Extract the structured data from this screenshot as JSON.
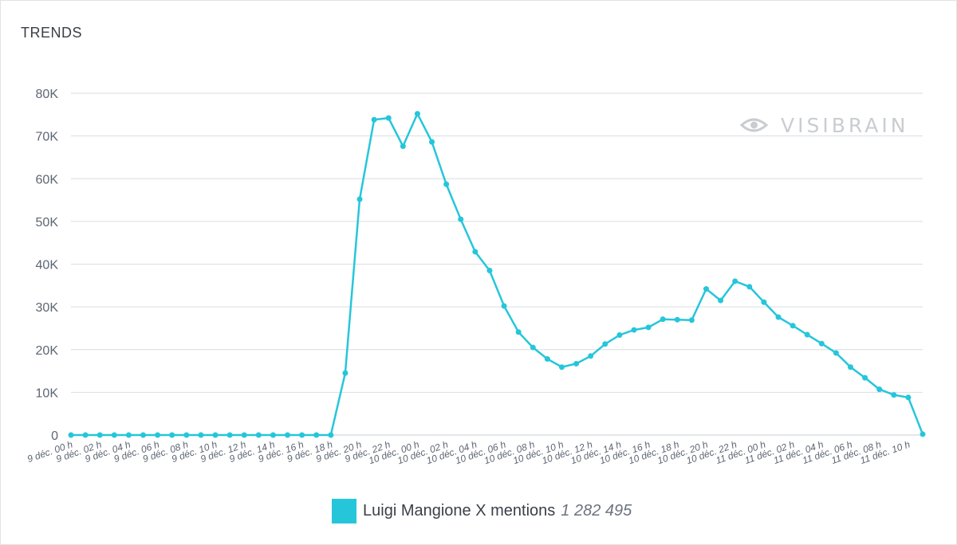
{
  "title": "TRENDS",
  "watermark": "VISIBRAIN",
  "legend": {
    "label": "Luigi Mangione X mentions",
    "total": "1 282 495"
  },
  "colors": {
    "series": "#26c6da",
    "grid": "#d9dde2",
    "axis_text": "#5d6673",
    "watermark": "#c9cdd1"
  },
  "chart_data": {
    "type": "line",
    "title": "TRENDS",
    "xlabel": "",
    "ylabel": "",
    "ylim": [
      0,
      80000
    ],
    "yticks": [
      0,
      10000,
      20000,
      30000,
      40000,
      50000,
      60000,
      70000,
      80000
    ],
    "ytick_labels": [
      "0",
      "10K",
      "20K",
      "30K",
      "40K",
      "50K",
      "60K",
      "70K",
      "80K"
    ],
    "xtick_labels": [
      "9 déc. 00 h",
      "9 déc. 02 h",
      "9 déc. 04 h",
      "9 déc. 06 h",
      "9 déc. 08 h",
      "9 déc. 10 h",
      "9 déc. 12 h",
      "9 déc. 14 h",
      "9 déc. 16 h",
      "9 déc. 18 h",
      "9 déc. 20 h",
      "9 déc. 22 h",
      "10 déc. 00 h",
      "10 déc. 02 h",
      "10 déc. 04 h",
      "10 déc. 06 h",
      "10 déc. 08 h",
      "10 déc. 10 h",
      "10 déc. 12 h",
      "10 déc. 14 h",
      "10 déc. 16 h",
      "10 déc. 18 h",
      "10 déc. 20 h",
      "10 déc. 22 h",
      "11 déc. 00 h",
      "11 déc. 02 h",
      "11 déc. 04 h",
      "11 déc. 06 h",
      "11 déc. 08 h",
      "11 déc. 10 h"
    ],
    "grid": true,
    "legend_position": "bottom",
    "series": [
      {
        "name": "Luigi Mangione X mentions",
        "values": [
          0,
          0,
          0,
          0,
          0,
          0,
          0,
          0,
          0,
          0,
          0,
          0,
          0,
          0,
          0,
          0,
          0,
          0,
          0,
          14500,
          55200,
          73800,
          74200,
          67600,
          75200,
          68600,
          58700,
          50500,
          42900,
          38500,
          30200,
          24100,
          20500,
          17800,
          15900,
          16700,
          18500,
          21300,
          23400,
          24600,
          25200,
          27100,
          27000,
          26900,
          34200,
          31500,
          36000,
          34700,
          31100,
          27600,
          25600,
          23500,
          21400,
          19200,
          15900,
          13400,
          10700,
          9400,
          8800,
          200
        ]
      }
    ]
  }
}
